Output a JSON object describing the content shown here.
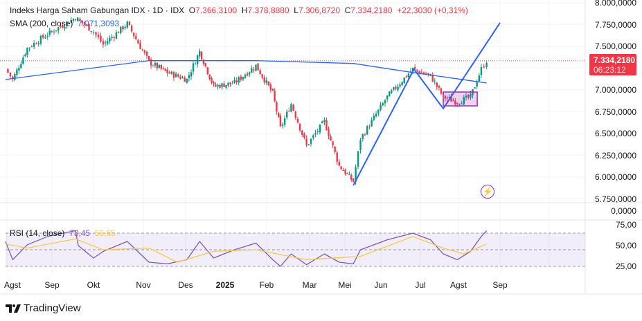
{
  "legend": {
    "title": "Indeks Harga Saham Gabungan IDX · 1D · IDX",
    "o_label": "O",
    "open": "7.366,3100",
    "h_label": "H",
    "high": "7.378,8880",
    "l_label": "L",
    "low": "7.306,8720",
    "c_label": "C",
    "close": "7.334,2180",
    "change": "+22,3030 (+0,31%)",
    "sma_label": "SMA (200, close)",
    "sma_value": "7.071,3093",
    "rsi_label": "RSI (14, close)",
    "rsi_value": "73,45",
    "rsi_ma_value": "56,65"
  },
  "price_tag": {
    "price": "7.334,2180",
    "countdown": "06:23:12"
  },
  "volume_axis_label": "0,0000",
  "branding": "TradingView",
  "colors": {
    "up": "#089981",
    "down": "#f23645",
    "sma": "#2962ff",
    "rsi": "#7e57c2",
    "rsi_ma": "#f7c948",
    "drawing": "#2962ff",
    "box": "#9c27b0"
  },
  "chart_data": {
    "type": "candlestick",
    "price_axis": {
      "ticks": [
        "8.000,0000",
        "7.750,0000",
        "7.500,0000",
        "7.000,0000",
        "6.750,0000",
        "6.500,0000",
        "6.250,0000",
        "6.000,0000",
        "5.750,0000"
      ],
      "range": [
        5750,
        8000
      ]
    },
    "rsi_axis": {
      "ticks": [
        "75,00",
        "50,00",
        "25,00"
      ],
      "band": [
        30,
        70
      ]
    },
    "x_ticks": [
      "Agst",
      "Sep",
      "Okt",
      "Nov",
      "Des",
      "2025",
      "Feb",
      "Mar",
      "Mei",
      "Jun",
      "Jul",
      "Agst",
      "Sep"
    ],
    "close_path": [
      [
        "2024-07-31",
        7240
      ],
      [
        "2024-08-05",
        7120
      ],
      [
        "2024-08-15",
        7480
      ],
      [
        "2024-08-29",
        7640
      ],
      [
        "2024-09-18",
        7830
      ],
      [
        "2024-10-01",
        7670
      ],
      [
        "2024-10-07",
        7520
      ],
      [
        "2024-10-22",
        7760
      ],
      [
        "2024-11-05",
        7320
      ],
      [
        "2024-11-18",
        7200
      ],
      [
        "2024-12-02",
        7120
      ],
      [
        "2024-12-12",
        7440
      ],
      [
        "2024-12-23",
        7040
      ],
      [
        "2025-01-08",
        7080
      ],
      [
        "2025-01-24",
        7280
      ],
      [
        "2025-02-05",
        6960
      ],
      [
        "2025-02-10",
        6560
      ],
      [
        "2025-02-17",
        6840
      ],
      [
        "2025-02-27",
        6360
      ],
      [
        "2025-03-14",
        6640
      ],
      [
        "2025-03-27",
        6130
      ],
      [
        "2025-04-08",
        5950
      ],
      [
        "2025-04-14",
        6440
      ],
      [
        "2025-05-06",
        6920
      ],
      [
        "2025-05-26",
        7240
      ],
      [
        "2025-06-09",
        7160
      ],
      [
        "2025-06-19",
        6920
      ],
      [
        "2025-06-30",
        6860
      ],
      [
        "2025-07-10",
        6920
      ],
      [
        "2025-07-18",
        7240
      ],
      [
        "2025-07-22",
        7334
      ]
    ],
    "sma": [
      [
        "2024-07-31",
        7120
      ],
      [
        "2024-11-05",
        7336
      ],
      [
        "2025-01-24",
        7336
      ],
      [
        "2025-04-08",
        7304
      ],
      [
        "2025-05-26",
        7200
      ],
      [
        "2025-07-22",
        7080
      ]
    ],
    "rsi": [
      [
        "2024-07-31",
        60
      ],
      [
        "2024-08-05",
        38
      ],
      [
        "2024-08-15",
        56
      ],
      [
        "2024-08-29",
        66
      ],
      [
        "2024-09-18",
        73
      ],
      [
        "2024-09-20",
        55
      ],
      [
        "2024-10-01",
        40
      ],
      [
        "2024-10-07",
        48
      ],
      [
        "2024-10-22",
        60
      ],
      [
        "2024-11-05",
        35
      ],
      [
        "2024-11-18",
        33
      ],
      [
        "2024-12-02",
        38
      ],
      [
        "2024-12-12",
        60
      ],
      [
        "2024-12-23",
        40
      ],
      [
        "2025-01-08",
        50
      ],
      [
        "2025-01-24",
        58
      ],
      [
        "2025-02-05",
        38
      ],
      [
        "2025-02-10",
        30
      ],
      [
        "2025-02-17",
        45
      ],
      [
        "2025-02-27",
        32
      ],
      [
        "2025-03-14",
        45
      ],
      [
        "2025-03-27",
        35
      ],
      [
        "2025-04-08",
        33
      ],
      [
        "2025-04-14",
        50
      ],
      [
        "2025-05-06",
        62
      ],
      [
        "2025-05-26",
        70
      ],
      [
        "2025-06-09",
        62
      ],
      [
        "2025-06-19",
        45
      ],
      [
        "2025-06-30",
        38
      ],
      [
        "2025-07-10",
        48
      ],
      [
        "2025-07-18",
        66
      ],
      [
        "2025-07-22",
        73
      ]
    ],
    "rsi_ma": [
      [
        "2024-07-31",
        57
      ],
      [
        "2024-08-15",
        52
      ],
      [
        "2024-09-18",
        63
      ],
      [
        "2024-10-07",
        50
      ],
      [
        "2024-11-05",
        52
      ],
      [
        "2024-11-25",
        35
      ],
      [
        "2024-12-23",
        48
      ],
      [
        "2025-01-24",
        50
      ],
      [
        "2025-02-27",
        38
      ],
      [
        "2025-04-14",
        42
      ],
      [
        "2025-05-26",
        66
      ],
      [
        "2025-06-19",
        52
      ],
      [
        "2025-07-05",
        45
      ],
      [
        "2025-07-22",
        57
      ]
    ],
    "drawings": {
      "trend_lines": [
        [
          "2025-04-08",
          5905
        ],
        [
          "2025-05-27",
          7238
        ],
        [
          "2025-06-19",
          6786
        ],
        [
          "2025-08-01",
          7770
        ]
      ],
      "box": {
        "from": "2025-06-19",
        "to": "2025-07-15",
        "top": 6976,
        "bottom": 6817
      }
    }
  }
}
